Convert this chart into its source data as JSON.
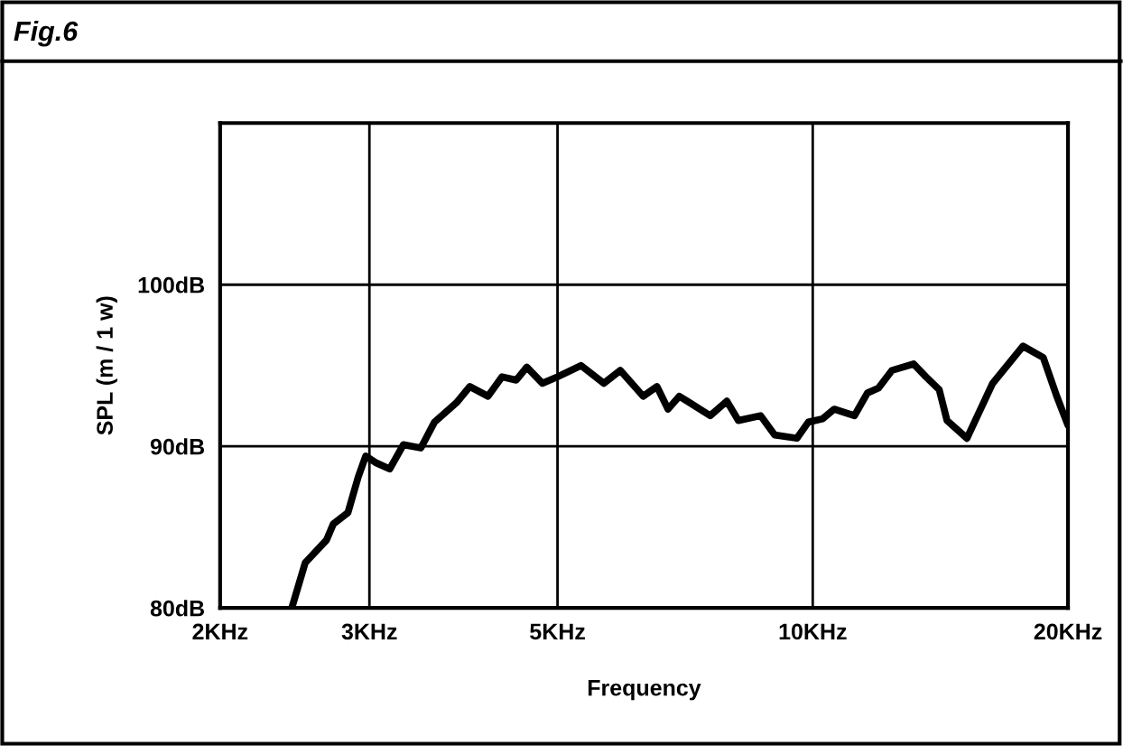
{
  "chart_data": {
    "type": "line",
    "title": "Fig.6",
    "xlabel": "Frequency",
    "ylabel": "SPL (m / 1 w)",
    "log": "x",
    "xlim": [
      2,
      20
    ],
    "xticks": [
      {
        "value": 2,
        "label": "2KHz"
      },
      {
        "value": 3,
        "label": "3KHz"
      },
      {
        "value": 5,
        "label": "5KHz"
      },
      {
        "value": 10,
        "label": "10KHz"
      },
      {
        "value": 20,
        "label": "20KHz"
      }
    ],
    "ylim": [
      80,
      110
    ],
    "yticks": [
      {
        "value": 80,
        "label": "80dB"
      },
      {
        "value": 90,
        "label": "90dB"
      },
      {
        "value": 100,
        "label": "100dB"
      },
      {
        "value": 110,
        "label": null
      }
    ],
    "grid": true,
    "marker": "none",
    "line_style": "solid",
    "series": [
      {
        "color": "#000000",
        "x": [
          2.43,
          2.52,
          2.67,
          2.72,
          2.83,
          2.91,
          2.97,
          3.05,
          3.17,
          3.29,
          3.45,
          3.58,
          3.8,
          3.94,
          4.14,
          4.3,
          4.47,
          4.6,
          4.8,
          5.0,
          5.33,
          5.67,
          5.93,
          6.31,
          6.55,
          6.75,
          6.96,
          7.57,
          7.92,
          8.17,
          8.68,
          9.02,
          9.58,
          9.88,
          10.27,
          10.6,
          11.2,
          11.6,
          11.95,
          12.4,
          13.15,
          13.6,
          14.1,
          14.4,
          15.2,
          16.3,
          17.7,
          18.7,
          19.4,
          20.0
        ],
        "values": [
          80.0,
          82.8,
          84.2,
          85.2,
          85.9,
          88.1,
          89.4,
          89.0,
          88.6,
          90.1,
          89.9,
          91.5,
          92.7,
          93.7,
          93.1,
          94.3,
          94.1,
          94.9,
          93.9,
          94.3,
          95.0,
          93.9,
          94.7,
          93.1,
          93.7,
          92.3,
          93.1,
          91.9,
          92.8,
          91.6,
          91.9,
          90.7,
          90.5,
          91.5,
          91.7,
          92.3,
          91.9,
          93.3,
          93.6,
          94.7,
          95.1,
          94.3,
          93.5,
          91.6,
          90.5,
          93.9,
          96.2,
          95.5,
          93.1,
          91.3
        ]
      }
    ]
  }
}
